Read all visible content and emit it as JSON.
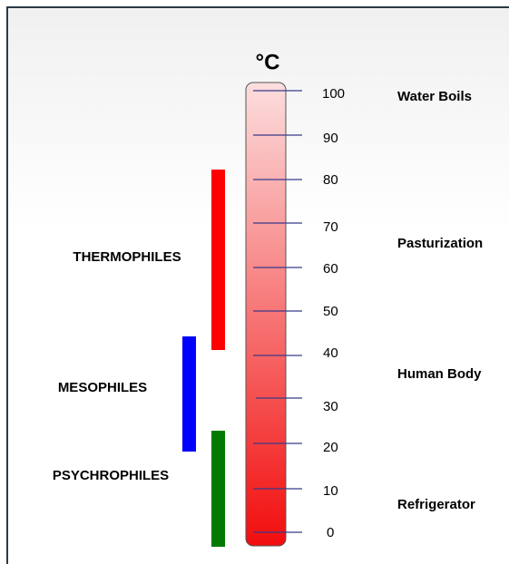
{
  "unit": "°C",
  "scale": {
    "ticks": [
      "100",
      "90",
      "80",
      "70",
      "60",
      "50",
      "40",
      "30",
      "20",
      "10",
      "0"
    ]
  },
  "groups": [
    {
      "label": "THERMOPHILES"
    },
    {
      "label": "MESOPHILES"
    },
    {
      "label": "PSYCHROPHILES"
    }
  ],
  "annotations": [
    {
      "label": "Water Boils"
    },
    {
      "label": "Pasturization"
    },
    {
      "label": "Human Body"
    },
    {
      "label": "Refrigerator"
    }
  ]
}
